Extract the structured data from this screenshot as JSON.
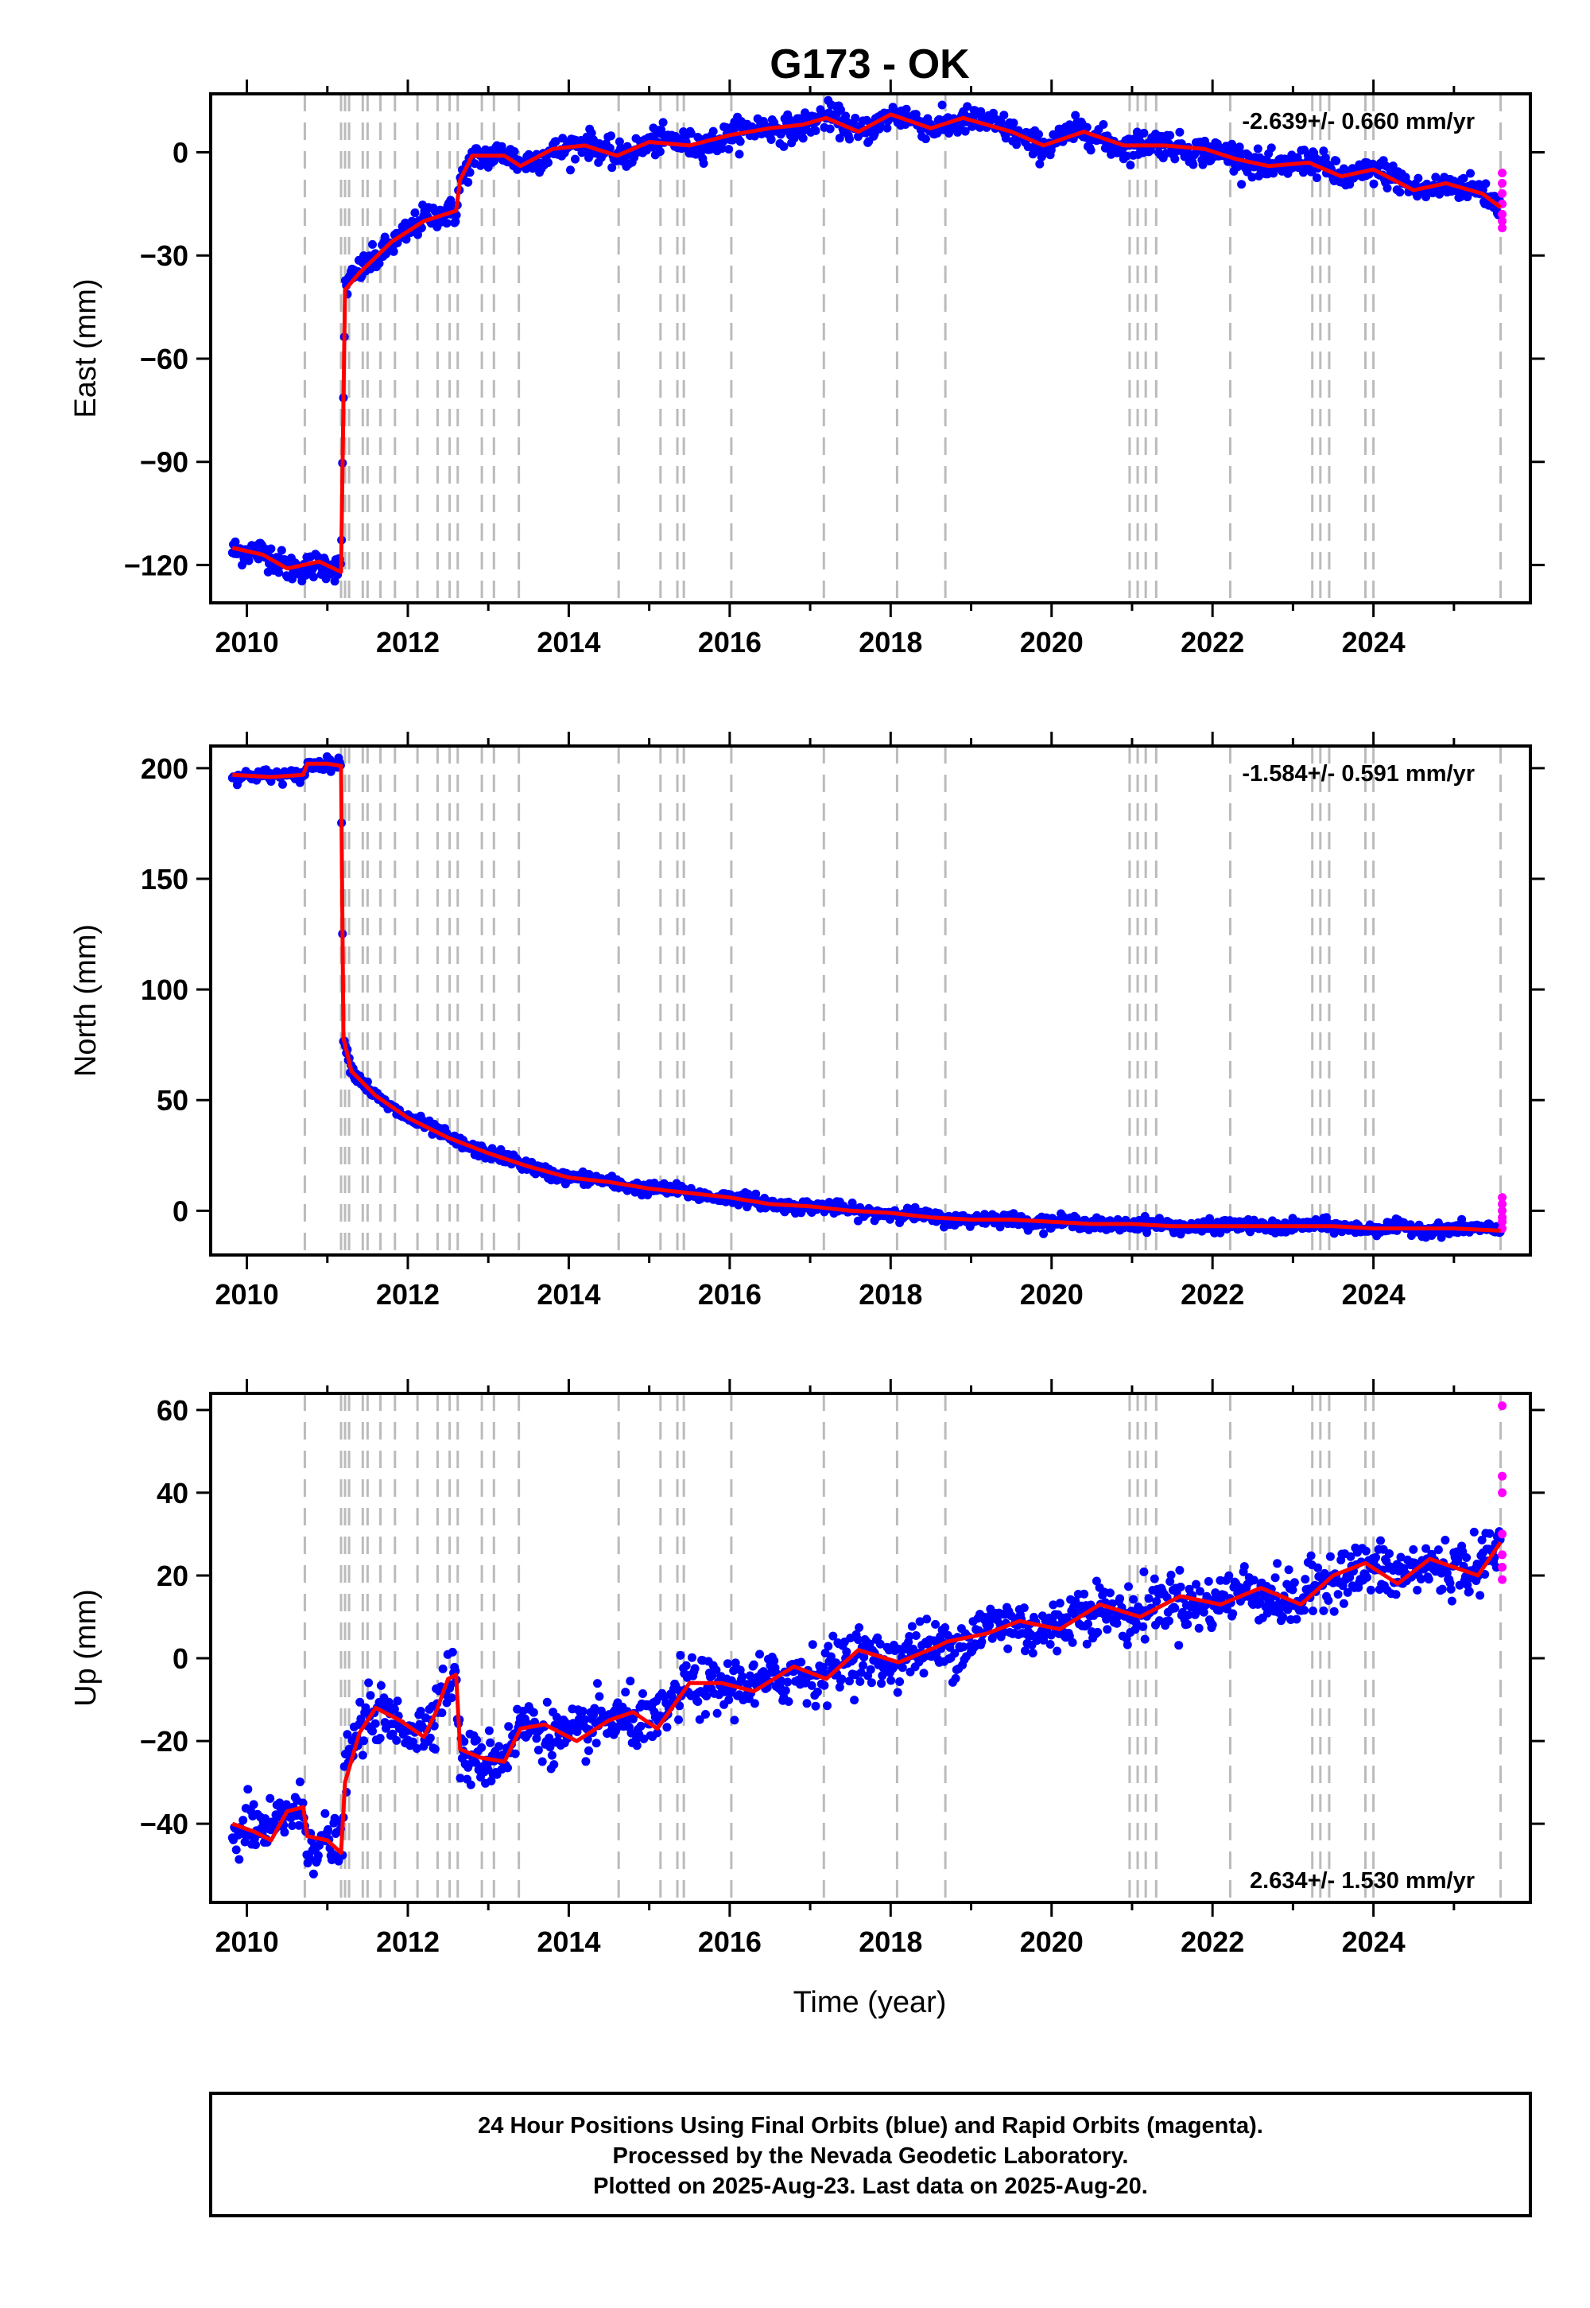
{
  "title": "G173 - OK",
  "x_axis_label": "Time (year)",
  "footer": {
    "line1": "24 Hour Positions Using Final Orbits (blue) and Rapid Orbits (magenta).",
    "line2": "Processed by the Nevada Geodetic Laboratory.",
    "line3": "Plotted on 2025-Aug-23. Last data on 2025-Aug-20."
  },
  "colors": {
    "final_orbits": "#0000ff",
    "rapid_orbits": "#ff00ff",
    "model": "#ff0000",
    "event_lines": "#bbbbbb"
  },
  "event_years": [
    2010.72,
    2011.17,
    2011.22,
    2011.27,
    2011.44,
    2011.5,
    2011.66,
    2011.84,
    2012.12,
    2012.37,
    2012.52,
    2012.62,
    2012.92,
    2013.07,
    2013.38,
    2014.62,
    2015.14,
    2015.35,
    2015.43,
    2016.02,
    2017.17,
    2018.08,
    2018.68,
    2020.97,
    2021.07,
    2021.17,
    2021.3,
    2022.22,
    2023.24,
    2023.34,
    2023.45,
    2023.9,
    2024.0,
    2025.58
  ],
  "chart_data": [
    {
      "type": "scatter",
      "id": "east",
      "ylabel": "East (mm)",
      "rate_label": "-2.639+/- 0.660 mm/yr",
      "rate_position": "top-right",
      "xlim": [
        2009.55,
        2025.95
      ],
      "ylim": [
        -131,
        17
      ],
      "x_ticks": [
        "2010",
        "2012",
        "2014",
        "2016",
        "2018",
        "2020",
        "2022",
        "2024"
      ],
      "y_ticks": [
        "0",
        "−30",
        "−60",
        "−90",
        "−120"
      ],
      "y_tick_values": [
        0,
        -30,
        -60,
        -90,
        -120
      ],
      "model_points": [
        [
          2009.82,
          -115
        ],
        [
          2010.2,
          -117
        ],
        [
          2010.5,
          -121
        ],
        [
          2010.9,
          -119
        ],
        [
          2011.17,
          -122
        ],
        [
          2011.22,
          -40
        ],
        [
          2011.4,
          -35
        ],
        [
          2011.8,
          -26
        ],
        [
          2012.2,
          -20
        ],
        [
          2012.6,
          -17
        ],
        [
          2012.65,
          -8
        ],
        [
          2012.8,
          -1
        ],
        [
          2013.2,
          -1
        ],
        [
          2013.4,
          -4
        ],
        [
          2013.8,
          1
        ],
        [
          2014.2,
          2
        ],
        [
          2014.6,
          -1
        ],
        [
          2015.0,
          3
        ],
        [
          2015.5,
          2
        ],
        [
          2016.0,
          5
        ],
        [
          2016.5,
          7
        ],
        [
          2016.9,
          8
        ],
        [
          2017.2,
          10
        ],
        [
          2017.6,
          6
        ],
        [
          2018.0,
          11
        ],
        [
          2018.5,
          7
        ],
        [
          2018.9,
          10
        ],
        [
          2019.5,
          6
        ],
        [
          2019.9,
          2
        ],
        [
          2020.4,
          6
        ],
        [
          2020.9,
          2
        ],
        [
          2021.4,
          2
        ],
        [
          2021.9,
          1
        ],
        [
          2022.3,
          -2
        ],
        [
          2022.7,
          -4
        ],
        [
          2023.2,
          -3
        ],
        [
          2023.6,
          -7
        ],
        [
          2024.0,
          -5
        ],
        [
          2024.5,
          -11
        ],
        [
          2024.9,
          -9
        ],
        [
          2025.35,
          -12
        ],
        [
          2025.58,
          -16
        ]
      ],
      "noise": 3.5,
      "rapid_values": [
        -6,
        -9,
        -12,
        -15,
        -18,
        -20,
        -22
      ]
    },
    {
      "type": "scatter",
      "id": "north",
      "ylabel": "North (mm)",
      "rate_label": "-1.584+/- 0.591 mm/yr",
      "rate_position": "top-right",
      "xlim": [
        2009.55,
        2025.95
      ],
      "ylim": [
        -20,
        210
      ],
      "x_ticks": [
        "2010",
        "2012",
        "2014",
        "2016",
        "2018",
        "2020",
        "2022",
        "2024"
      ],
      "y_ticks": [
        "200",
        "150",
        "100",
        "50",
        "0"
      ],
      "y_tick_values": [
        200,
        150,
        100,
        50,
        0
      ],
      "model_points": [
        [
          2009.82,
          197
        ],
        [
          2010.3,
          196
        ],
        [
          2010.7,
          197
        ],
        [
          2010.75,
          202
        ],
        [
          2011.0,
          202
        ],
        [
          2011.17,
          201
        ],
        [
          2011.2,
          78
        ],
        [
          2011.3,
          63
        ],
        [
          2011.6,
          52
        ],
        [
          2012.0,
          42
        ],
        [
          2012.5,
          33
        ],
        [
          2013.0,
          26
        ],
        [
          2013.5,
          20
        ],
        [
          2014.0,
          15
        ],
        [
          2014.5,
          13
        ],
        [
          2015.0,
          10
        ],
        [
          2015.5,
          8
        ],
        [
          2016.0,
          6
        ],
        [
          2016.5,
          3
        ],
        [
          2017.0,
          2
        ],
        [
          2017.5,
          0
        ],
        [
          2018.0,
          -1
        ],
        [
          2018.5,
          -3
        ],
        [
          2019.0,
          -4
        ],
        [
          2019.5,
          -4
        ],
        [
          2020.0,
          -5
        ],
        [
          2020.5,
          -6
        ],
        [
          2021.0,
          -6
        ],
        [
          2021.5,
          -7
        ],
        [
          2022.0,
          -7
        ],
        [
          2022.5,
          -7
        ],
        [
          2023.0,
          -7
        ],
        [
          2023.5,
          -7
        ],
        [
          2024.0,
          -8
        ],
        [
          2024.5,
          -8
        ],
        [
          2025.0,
          -8
        ],
        [
          2025.58,
          -9
        ]
      ],
      "noise": 2.5,
      "rapid_values": [
        6,
        3,
        0,
        -3,
        -5,
        -8
      ]
    },
    {
      "type": "scatter",
      "id": "up",
      "ylabel": "Up (mm)",
      "rate_label": "2.634+/- 1.530 mm/yr",
      "rate_position": "bottom-right",
      "xlim": [
        2009.55,
        2025.95
      ],
      "ylim": [
        -59,
        64
      ],
      "x_ticks": [
        "2010",
        "2012",
        "2014",
        "2016",
        "2018",
        "2020",
        "2022",
        "2024"
      ],
      "y_ticks": [
        "60",
        "40",
        "20",
        "0",
        "−20",
        "−40"
      ],
      "y_tick_values": [
        60,
        40,
        20,
        0,
        -20,
        -40
      ],
      "model_points": [
        [
          2009.82,
          -40
        ],
        [
          2010.1,
          -42
        ],
        [
          2010.3,
          -44
        ],
        [
          2010.5,
          -37
        ],
        [
          2010.7,
          -36
        ],
        [
          2010.75,
          -43
        ],
        [
          2011.0,
          -44
        ],
        [
          2011.17,
          -47
        ],
        [
          2011.22,
          -30
        ],
        [
          2011.4,
          -18
        ],
        [
          2011.6,
          -12
        ],
        [
          2011.9,
          -15
        ],
        [
          2012.2,
          -19
        ],
        [
          2012.35,
          -13
        ],
        [
          2012.5,
          -5
        ],
        [
          2012.6,
          -4
        ],
        [
          2012.65,
          -22
        ],
        [
          2012.9,
          -24
        ],
        [
          2013.2,
          -25
        ],
        [
          2013.4,
          -17
        ],
        [
          2013.7,
          -16
        ],
        [
          2014.1,
          -20
        ],
        [
          2014.5,
          -15
        ],
        [
          2014.8,
          -13
        ],
        [
          2015.1,
          -17
        ],
        [
          2015.5,
          -6
        ],
        [
          2015.9,
          -6
        ],
        [
          2016.3,
          -8
        ],
        [
          2016.8,
          -2
        ],
        [
          2017.2,
          -5
        ],
        [
          2017.6,
          2
        ],
        [
          2018.1,
          -1
        ],
        [
          2018.6,
          3
        ],
        [
          2018.7,
          4
        ],
        [
          2019.2,
          6
        ],
        [
          2019.6,
          9
        ],
        [
          2020.1,
          7
        ],
        [
          2020.6,
          13
        ],
        [
          2021.1,
          10
        ],
        [
          2021.6,
          15
        ],
        [
          2022.1,
          13
        ],
        [
          2022.6,
          17
        ],
        [
          2023.1,
          13
        ],
        [
          2023.5,
          20
        ],
        [
          2023.9,
          23
        ],
        [
          2024.3,
          18
        ],
        [
          2024.7,
          24
        ],
        [
          2025.3,
          20
        ],
        [
          2025.58,
          28
        ]
      ],
      "noise": 6,
      "rapid_values": [
        61,
        44,
        40,
        30,
        25,
        22,
        19
      ]
    }
  ]
}
